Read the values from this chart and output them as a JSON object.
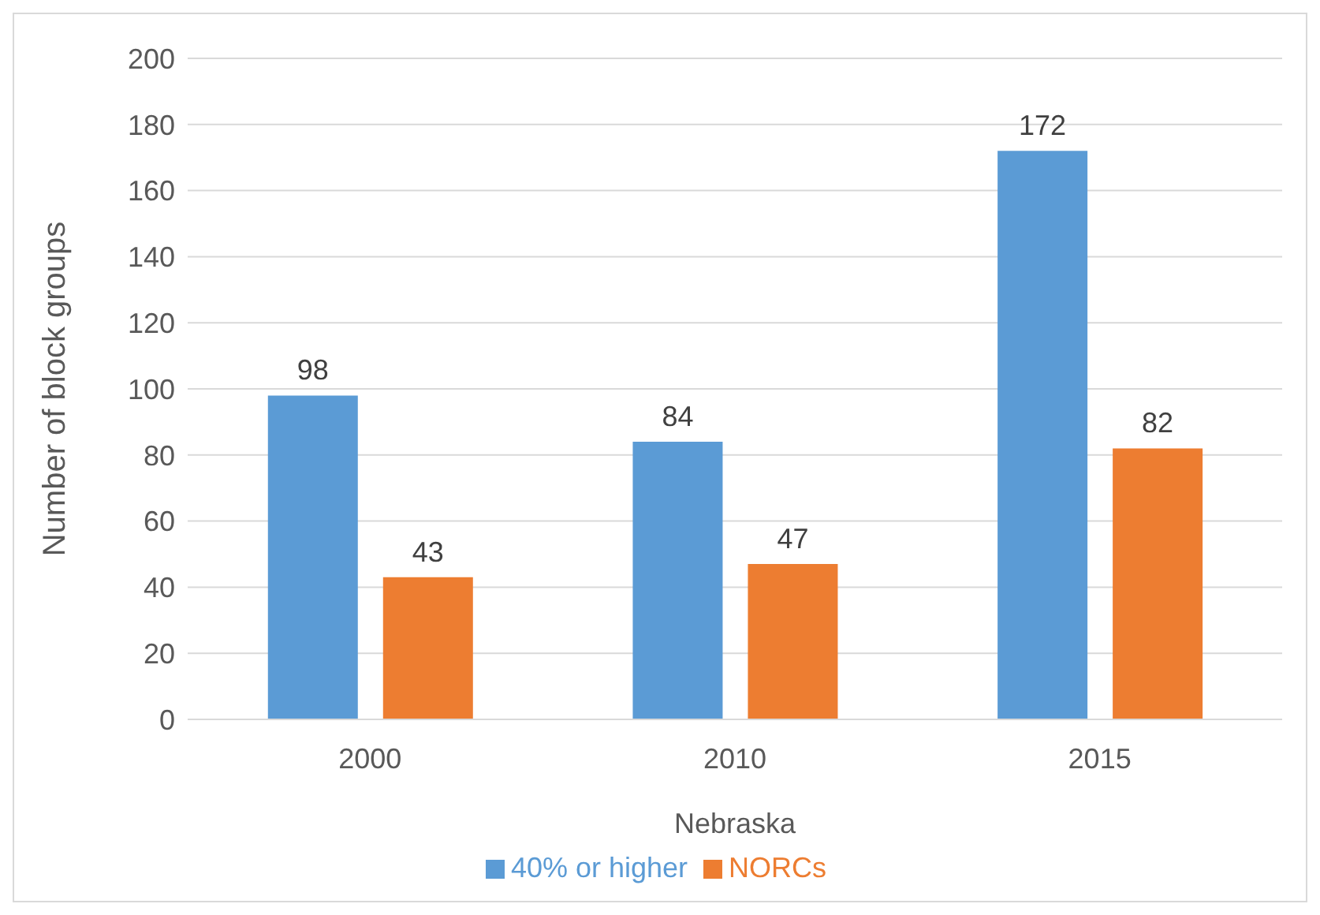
{
  "chart_data": {
    "type": "bar",
    "categories": [
      "2000",
      "2010",
      "2015"
    ],
    "xlabel": "Nebraska",
    "ylabel": "Number of block groups",
    "series": [
      {
        "name": "40% or higher",
        "color": "#5b9bd5",
        "values": [
          98,
          84,
          172
        ]
      },
      {
        "name": "NORCs",
        "color": "#ed7d31",
        "values": [
          43,
          47,
          82
        ]
      }
    ],
    "ylim": [
      0,
      200
    ],
    "yticks": [
      0,
      20,
      40,
      60,
      80,
      100,
      120,
      140,
      160,
      180,
      200
    ],
    "grid": "y",
    "legend": "bottom",
    "data_labels": true
  }
}
